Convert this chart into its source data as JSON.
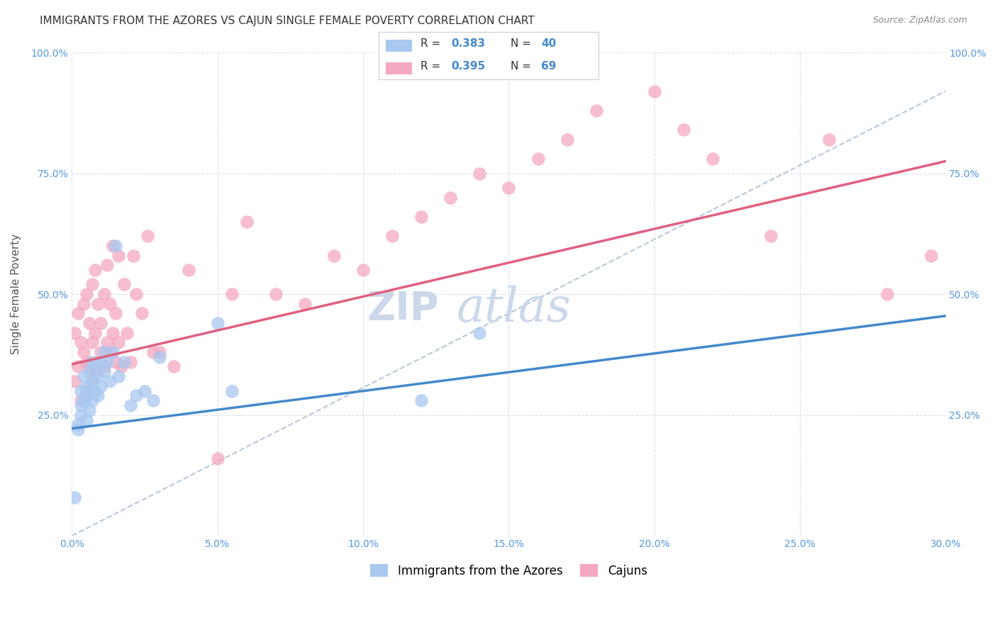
{
  "title": "IMMIGRANTS FROM THE AZORES VS CAJUN SINGLE FEMALE POVERTY CORRELATION CHART",
  "source": "Source: ZipAtlas.com",
  "ylabel": "Single Female Poverty",
  "xmin": 0.0,
  "xmax": 0.3,
  "ymin": 0.0,
  "ymax": 1.0,
  "xtick_labels": [
    "0.0%",
    "5.0%",
    "10.0%",
    "15.0%",
    "20.0%",
    "25.0%",
    "30.0%"
  ],
  "xtick_vals": [
    0.0,
    0.05,
    0.1,
    0.15,
    0.2,
    0.25,
    0.3
  ],
  "ytick_labels": [
    "25.0%",
    "50.0%",
    "75.0%",
    "100.0%"
  ],
  "ytick_vals": [
    0.25,
    0.5,
    0.75,
    1.0
  ],
  "legend_label1": "Immigrants from the Azores",
  "legend_label2": "Cajuns",
  "R1": "0.383",
  "N1": "40",
  "R2": "0.395",
  "N2": "69",
  "color_azores": "#a8c8f0",
  "color_cajun": "#f4a8c0",
  "color_line_azores": "#4488cc",
  "color_line_cajun": "#e06080",
  "color_line_dashed": "#b8c8d8",
  "watermark_color": "#ccd8ea",
  "azores_line_x0": 0.0,
  "azores_line_y0": 0.222,
  "azores_line_x1": 0.3,
  "azores_line_y1": 0.455,
  "cajun_line_x0": 0.0,
  "cajun_line_y0": 0.355,
  "cajun_line_x1": 0.3,
  "cajun_line_y1": 0.775,
  "dashed_line_x0": 0.0,
  "dashed_line_y0": 0.0,
  "dashed_line_x1": 0.3,
  "dashed_line_y1": 0.92,
  "azores_x": [
    0.001,
    0.002,
    0.002,
    0.003,
    0.003,
    0.003,
    0.004,
    0.004,
    0.005,
    0.005,
    0.005,
    0.006,
    0.006,
    0.006,
    0.007,
    0.007,
    0.007,
    0.008,
    0.008,
    0.009,
    0.009,
    0.01,
    0.01,
    0.011,
    0.011,
    0.012,
    0.013,
    0.014,
    0.015,
    0.016,
    0.018,
    0.02,
    0.022,
    0.025,
    0.028,
    0.03,
    0.05,
    0.055,
    0.12,
    0.14
  ],
  "azores_y": [
    0.08,
    0.22,
    0.23,
    0.25,
    0.27,
    0.3,
    0.28,
    0.33,
    0.24,
    0.29,
    0.31,
    0.26,
    0.3,
    0.34,
    0.28,
    0.32,
    0.36,
    0.3,
    0.35,
    0.29,
    0.33,
    0.31,
    0.36,
    0.34,
    0.38,
    0.36,
    0.32,
    0.38,
    0.6,
    0.33,
    0.36,
    0.27,
    0.29,
    0.3,
    0.28,
    0.37,
    0.44,
    0.3,
    0.28,
    0.42
  ],
  "cajun_x": [
    0.001,
    0.001,
    0.002,
    0.002,
    0.003,
    0.003,
    0.004,
    0.004,
    0.005,
    0.005,
    0.005,
    0.006,
    0.006,
    0.007,
    0.007,
    0.007,
    0.008,
    0.008,
    0.008,
    0.009,
    0.009,
    0.01,
    0.01,
    0.011,
    0.011,
    0.012,
    0.012,
    0.013,
    0.013,
    0.014,
    0.014,
    0.015,
    0.015,
    0.016,
    0.016,
    0.017,
    0.018,
    0.019,
    0.02,
    0.021,
    0.022,
    0.024,
    0.026,
    0.028,
    0.03,
    0.035,
    0.04,
    0.05,
    0.055,
    0.06,
    0.07,
    0.08,
    0.09,
    0.1,
    0.11,
    0.12,
    0.13,
    0.14,
    0.15,
    0.16,
    0.17,
    0.18,
    0.2,
    0.21,
    0.22,
    0.24,
    0.26,
    0.28,
    0.295
  ],
  "cajun_y": [
    0.32,
    0.42,
    0.35,
    0.46,
    0.28,
    0.4,
    0.38,
    0.48,
    0.3,
    0.36,
    0.5,
    0.35,
    0.44,
    0.32,
    0.4,
    0.52,
    0.34,
    0.42,
    0.55,
    0.36,
    0.48,
    0.38,
    0.44,
    0.35,
    0.5,
    0.4,
    0.56,
    0.38,
    0.48,
    0.42,
    0.6,
    0.36,
    0.46,
    0.4,
    0.58,
    0.35,
    0.52,
    0.42,
    0.36,
    0.58,
    0.5,
    0.46,
    0.62,
    0.38,
    0.38,
    0.35,
    0.55,
    0.16,
    0.5,
    0.65,
    0.5,
    0.48,
    0.58,
    0.55,
    0.62,
    0.66,
    0.7,
    0.75,
    0.72,
    0.78,
    0.82,
    0.88,
    0.92,
    0.84,
    0.78,
    0.62,
    0.82,
    0.5,
    0.58
  ],
  "title_fontsize": 11,
  "axis_label_fontsize": 11,
  "tick_fontsize": 10,
  "legend_fontsize": 12,
  "watermark_fontsize": 40
}
